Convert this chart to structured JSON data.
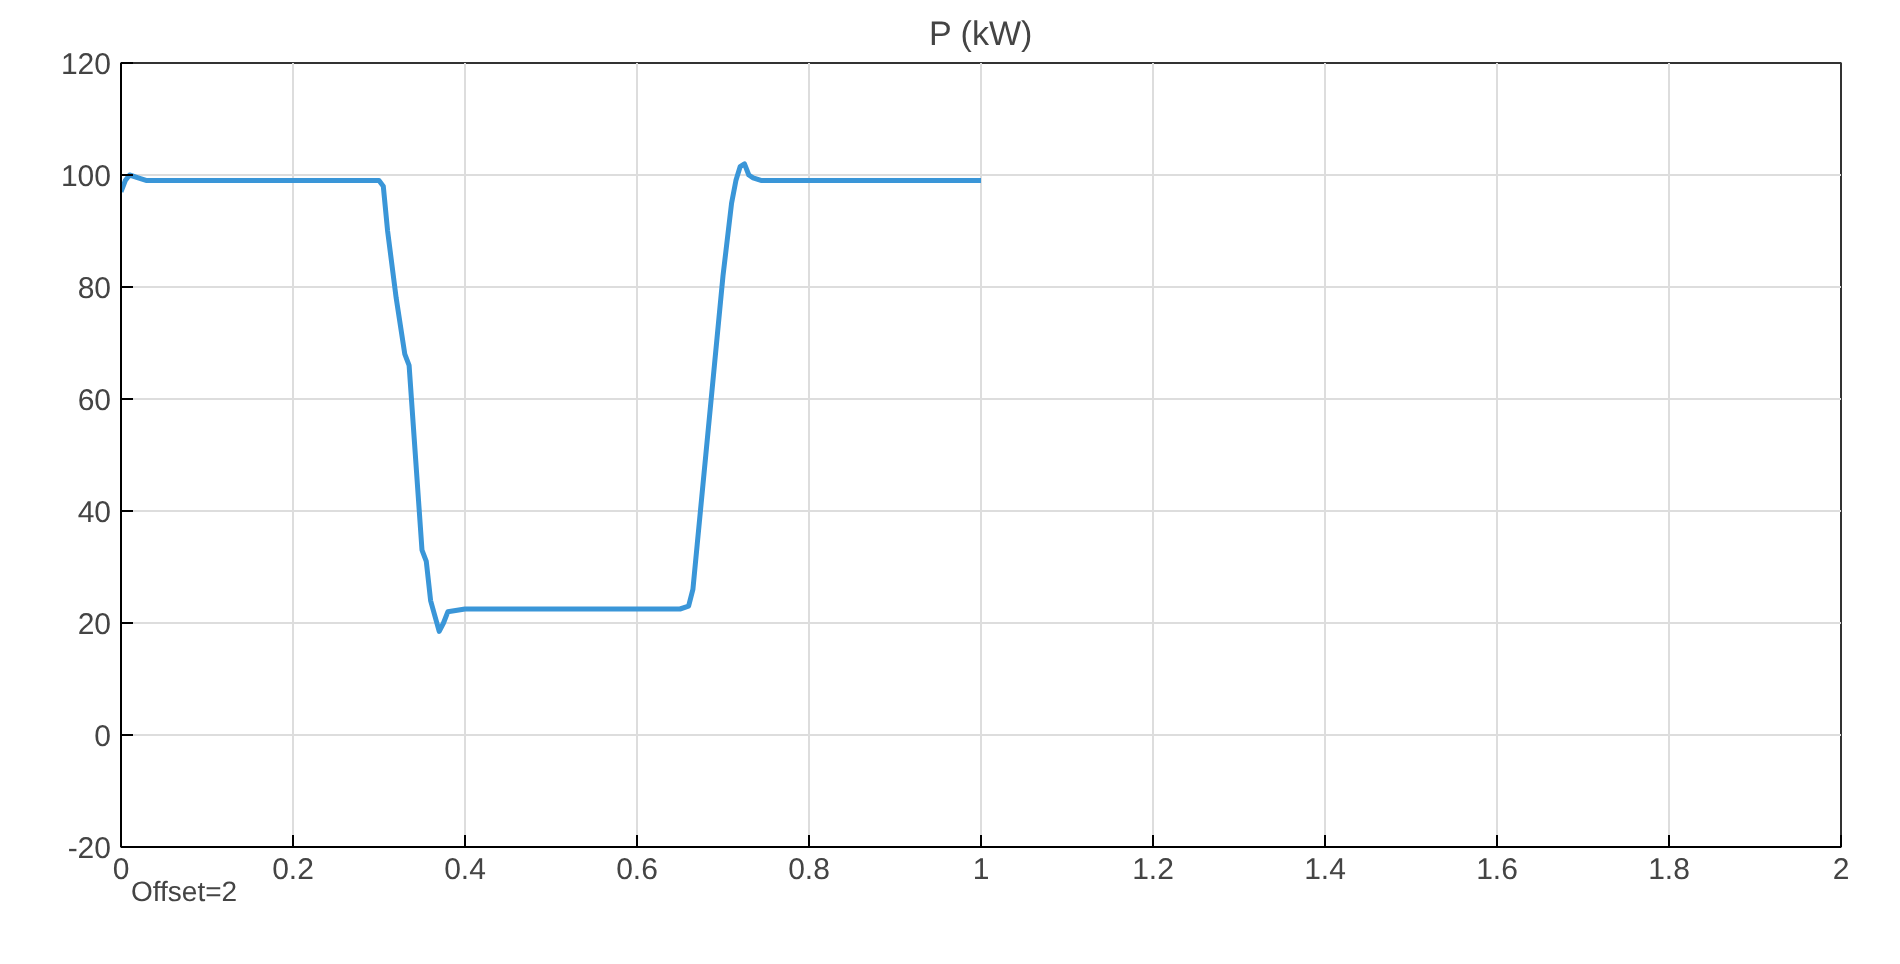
{
  "chart_data": {
    "type": "line",
    "title": "P (kW)",
    "annotations": [
      "Offset=2"
    ],
    "series": [
      {
        "color": "#3a96d8",
        "x": [
          0,
          0.005,
          0.01,
          0.02,
          0.03,
          0.1,
          0.2,
          0.29,
          0.3,
          0.305,
          0.31,
          0.32,
          0.33,
          0.335,
          0.34,
          0.35,
          0.355,
          0.36,
          0.37,
          0.375,
          0.38,
          0.4,
          0.5,
          0.6,
          0.65,
          0.66,
          0.665,
          0.67,
          0.68,
          0.69,
          0.7,
          0.71,
          0.715,
          0.72,
          0.725,
          0.73,
          0.735,
          0.745,
          0.8,
          0.9,
          1.0
        ],
        "values": [
          97,
          99,
          100,
          99.5,
          99,
          99,
          99,
          99,
          99,
          98,
          90,
          78,
          68,
          66,
          55,
          33,
          31,
          24,
          18.5,
          20,
          22,
          22.5,
          22.5,
          22.5,
          22.5,
          23,
          26,
          34,
          50,
          66,
          82,
          95,
          99,
          101.5,
          102,
          100,
          99.5,
          99,
          99,
          99,
          99
        ]
      }
    ],
    "xlim": [
      0,
      2
    ],
    "ylim": [
      -20,
      120
    ],
    "xticks": [
      0,
      0.2,
      0.4,
      0.6,
      0.8,
      1,
      1.2,
      1.4,
      1.6,
      1.8,
      2
    ],
    "yticks": [
      -20,
      0,
      20,
      40,
      60,
      80,
      100,
      120
    ],
    "grid": true,
    "line_style": "solid"
  }
}
